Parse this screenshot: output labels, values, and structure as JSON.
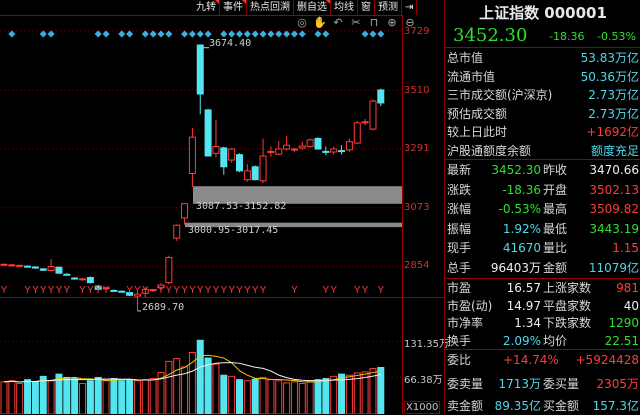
{
  "toolbar": {
    "tabs": [
      "九转",
      "事件",
      "热点回溯",
      "删自选",
      "均线",
      "窗",
      "预测"
    ],
    "tabs_flagged": [
      true,
      true,
      false,
      true,
      false,
      false,
      false
    ],
    "more_icon": "expand-right-icon",
    "tools": [
      {
        "icon": "eye-icon",
        "glyph": "◎"
      },
      {
        "icon": "hand-icon",
        "glyph": "✋"
      },
      {
        "icon": "undo-icon",
        "glyph": "↶"
      },
      {
        "icon": "scissors-icon",
        "glyph": "✂"
      },
      {
        "icon": "lock-icon",
        "glyph": "⊓"
      },
      {
        "icon": "zoom-in-icon",
        "glyph": "⊕"
      },
      {
        "icon": "zoom-out-icon",
        "glyph": "⊖"
      }
    ]
  },
  "price_axis": [
    "3729",
    "3510",
    "3291",
    "3073",
    "2854"
  ],
  "volume_axis": [
    "131.35万",
    "66.38万",
    "X1000"
  ],
  "annotations": {
    "high": "3674.40",
    "low": "2689.70",
    "gap1": "3087.53-3152.82",
    "gap2": "3000.95-3017.45"
  },
  "colors": {
    "up": "#ff3b3b",
    "down": "#54e6f0",
    "ma5": "#e8d000",
    "ma10": "#f0f0f0",
    "grid": "#800000",
    "gap": "#8a8a8a",
    "diamond": "#3ab0e0"
  },
  "chart_data": {
    "type": "candlestick",
    "price_range": [
      2650,
      3740
    ],
    "candles": [
      [
        2862,
        2866,
        2858,
        2863,
        58
      ],
      [
        2859,
        2864,
        2856,
        2861,
        60
      ],
      [
        2858,
        2862,
        2854,
        2859,
        55
      ],
      [
        2856,
        2859,
        2852,
        2855,
        62
      ],
      [
        2853,
        2856,
        2846,
        2849,
        58
      ],
      [
        2846,
        2849,
        2838,
        2841,
        68
      ],
      [
        2840,
        2882,
        2836,
        2855,
        60
      ],
      [
        2852,
        2855,
        2828,
        2830,
        72
      ],
      [
        2826,
        2830,
        2822,
        2825,
        66
      ],
      [
        2812,
        2815,
        2806,
        2810,
        64
      ],
      [
        2807,
        2811,
        2803,
        2809,
        55
      ],
      [
        2814,
        2818,
        2792,
        2795,
        60
      ],
      [
        2782,
        2786,
        2768,
        2770,
        66
      ],
      [
        2773,
        2780,
        2766,
        2776,
        60
      ],
      [
        2766,
        2770,
        2761,
        2765,
        64
      ],
      [
        2763,
        2766,
        2759,
        2762,
        60
      ],
      [
        2758,
        2762,
        2745,
        2748,
        62
      ],
      [
        2745,
        2760,
        2690,
        2752,
        60
      ],
      [
        2755,
        2778,
        2740,
        2770,
        62
      ],
      [
        2766,
        2772,
        2760,
        2769,
        64
      ],
      [
        2776,
        2792,
        2770,
        2786,
        75
      ],
      [
        2795,
        2895,
        2788,
        2888,
        95
      ],
      [
        2960,
        3012,
        2950,
        3008,
        100
      ],
      [
        3035,
        3090,
        3010,
        3088,
        85
      ],
      [
        3200,
        3370,
        3150,
        3335,
        111
      ],
      [
        3677,
        3675,
        3420,
        3495,
        133
      ],
      [
        3436,
        3440,
        3265,
        3265,
        101
      ],
      [
        3275,
        3400,
        3260,
        3300,
        90
      ],
      [
        3295,
        3300,
        3195,
        3225,
        70
      ],
      [
        3250,
        3295,
        3240,
        3291,
        68
      ],
      [
        3270,
        3275,
        3205,
        3210,
        62
      ],
      [
        3177,
        3235,
        3170,
        3210,
        60
      ],
      [
        3225,
        3230,
        3175,
        3177,
        63
      ],
      [
        3173,
        3330,
        3165,
        3265,
        66
      ],
      [
        3280,
        3300,
        3262,
        3282,
        62
      ],
      [
        3272,
        3320,
        3268,
        3291,
        60
      ],
      [
        3291,
        3340,
        3285,
        3305,
        56
      ],
      [
        3290,
        3295,
        3280,
        3291,
        58
      ],
      [
        3295,
        3318,
        3288,
        3302,
        55
      ],
      [
        3300,
        3330,
        3295,
        3325,
        60
      ],
      [
        3330,
        3335,
        3291,
        3291,
        62
      ],
      [
        3282,
        3300,
        3268,
        3280,
        64
      ],
      [
        3280,
        3300,
        3270,
        3291,
        68
      ],
      [
        3285,
        3305,
        3270,
        3282,
        72
      ],
      [
        3288,
        3330,
        3280,
        3318,
        70
      ],
      [
        3313,
        3395,
        3310,
        3388,
        74
      ],
      [
        3390,
        3402,
        3378,
        3392,
        76
      ],
      [
        3365,
        3475,
        3360,
        3469,
        82
      ],
      [
        3510,
        3515,
        3450,
        3462,
        84
      ]
    ],
    "diamonds": [
      1,
      5,
      6,
      12,
      13,
      15,
      16,
      18,
      19,
      20,
      21,
      23,
      24,
      25,
      26,
      28,
      29,
      30,
      31,
      32,
      33,
      34,
      35,
      36,
      37,
      38,
      40,
      41,
      46,
      47,
      48
    ],
    "y_markers": [
      0,
      3,
      4,
      5,
      6,
      7,
      8,
      10,
      11,
      12,
      13,
      16,
      17,
      18,
      20,
      21,
      22,
      23,
      24,
      25,
      26,
      27,
      28,
      29,
      30,
      31,
      32,
      33,
      37,
      41,
      42,
      45,
      46,
      48
    ],
    "gaps": [
      [
        3087.53,
        3152.82
      ],
      [
        3000.95,
        3017.45
      ]
    ],
    "volume_ticks": [
      131.35,
      66.38
    ]
  },
  "quote": {
    "title": "上证指数 000001",
    "price": "3452.30",
    "change": "-18.36",
    "pct": "-0.53%",
    "stats": [
      {
        "label": "总市值",
        "value": "53.83万亿",
        "cls": "c"
      },
      {
        "label": "流通市值",
        "value": "50.36万亿",
        "cls": "c"
      },
      {
        "label": "三市成交额(沪深京)",
        "value": "2.73万亿",
        "cls": "c"
      },
      {
        "label": "预估成交额",
        "value": "2.73万亿",
        "cls": "c"
      },
      {
        "label": "较上日此时",
        "value": "+1692亿",
        "cls": "r"
      },
      {
        "label": "沪股通额度余额",
        "value": "额度充足",
        "cls": "c"
      }
    ],
    "grid1": [
      [
        "最新",
        "3452.30",
        "g",
        "昨收",
        "3470.66",
        "w"
      ],
      [
        "涨跌",
        "-18.36",
        "g",
        "开盘",
        "3502.13",
        "r"
      ],
      [
        "涨幅",
        "-0.53%",
        "g",
        "最高",
        "3509.82",
        "r"
      ],
      [
        "振幅",
        "1.92%",
        "c",
        "最低",
        "3443.19",
        "g"
      ],
      [
        "现手",
        "41670",
        "c",
        "量比",
        "1.15",
        "r"
      ],
      [
        "总手",
        "96403万",
        "w",
        "金额",
        "11079亿",
        "c"
      ]
    ],
    "grid2": [
      [
        "市盈",
        "16.57",
        "w",
        "上涨家数",
        "981",
        "r"
      ],
      [
        "市盈(动)",
        "14.97",
        "w",
        "平盘家数",
        "40",
        "w"
      ],
      [
        "市净率",
        "1.34",
        "w",
        "下跌家数",
        "1290",
        "g"
      ],
      [
        "换手",
        "2.09%",
        "c",
        "均价",
        "22.51",
        "g"
      ]
    ],
    "weibi": {
      "label": "委比",
      "pct": "+14.74%",
      "diff": "+5924428"
    },
    "grid3": [
      [
        "委卖量",
        "1713万",
        "c",
        "委买量",
        "2305万",
        "r"
      ],
      [
        "卖金额",
        "89.35亿",
        "c",
        "买金额",
        "157.3亿",
        "c"
      ]
    ]
  }
}
